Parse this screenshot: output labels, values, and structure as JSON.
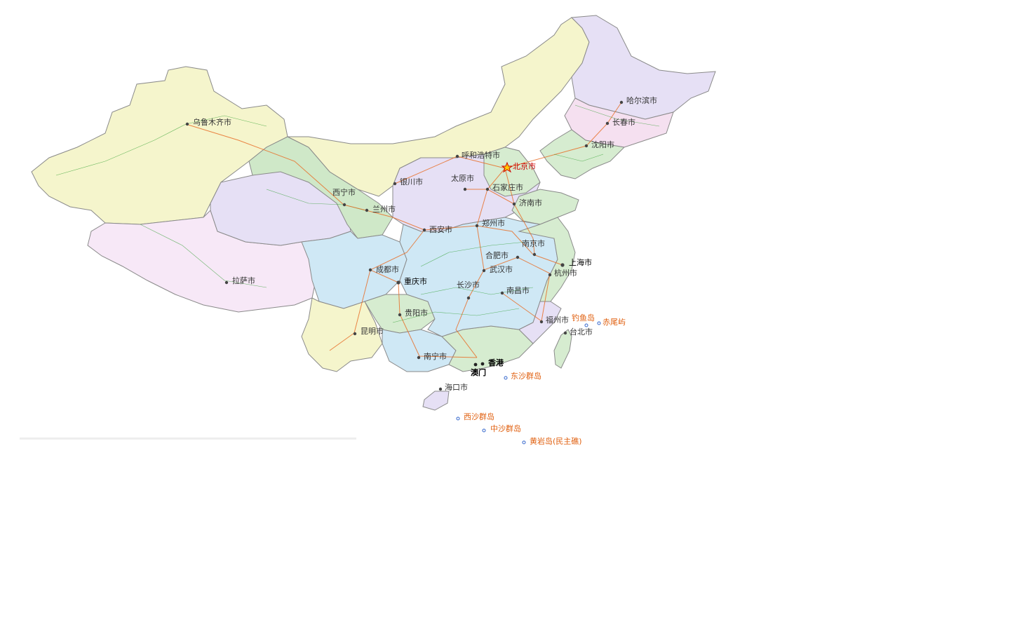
{
  "map": {
    "cities": [
      {
        "id": "urumqi",
        "name": "乌鲁木齐市",
        "type": "normal"
      },
      {
        "id": "harbin",
        "name": "哈尔滨市",
        "type": "normal"
      },
      {
        "id": "changchun",
        "name": "长春市",
        "type": "normal"
      },
      {
        "id": "shenyang",
        "name": "沈阳市",
        "type": "normal"
      },
      {
        "id": "hohhot",
        "name": "呼和浩特市",
        "type": "normal"
      },
      {
        "id": "beijing",
        "name": "北京市",
        "type": "capital"
      },
      {
        "id": "yinchuan",
        "name": "银川市",
        "type": "normal"
      },
      {
        "id": "taiyuan",
        "name": "太原市",
        "type": "normal"
      },
      {
        "id": "shijiazhuang",
        "name": "石家庄市",
        "type": "normal"
      },
      {
        "id": "xining",
        "name": "西宁市",
        "type": "normal"
      },
      {
        "id": "lanzhou",
        "name": "兰州市",
        "type": "normal"
      },
      {
        "id": "jinan",
        "name": "济南市",
        "type": "normal"
      },
      {
        "id": "xian",
        "name": "西安市",
        "type": "normal"
      },
      {
        "id": "zhengzhou",
        "name": "郑州市",
        "type": "normal"
      },
      {
        "id": "nanjing",
        "name": "南京市",
        "type": "normal"
      },
      {
        "id": "hefei",
        "name": "合肥市",
        "type": "normal"
      },
      {
        "id": "shanghai",
        "name": "上海市",
        "type": "major"
      },
      {
        "id": "chengdu",
        "name": "成都市",
        "type": "normal"
      },
      {
        "id": "wuhan",
        "name": "武汉市",
        "type": "normal"
      },
      {
        "id": "hangzhou",
        "name": "杭州市",
        "type": "normal"
      },
      {
        "id": "lhasa",
        "name": "拉萨市",
        "type": "normal"
      },
      {
        "id": "chongqing",
        "name": "重庆市",
        "type": "major"
      },
      {
        "id": "changsha",
        "name": "长沙市",
        "type": "normal"
      },
      {
        "id": "nanchang",
        "name": "南昌市",
        "type": "normal"
      },
      {
        "id": "guiyang",
        "name": "贵阳市",
        "type": "normal"
      },
      {
        "id": "fuzhou",
        "name": "福州市",
        "type": "normal"
      },
      {
        "id": "kunming",
        "name": "昆明市",
        "type": "normal"
      },
      {
        "id": "taipei",
        "name": "台北市",
        "type": "normal"
      },
      {
        "id": "nanning",
        "name": "南宁市",
        "type": "normal"
      },
      {
        "id": "hongkong",
        "name": "香港",
        "type": "sar"
      },
      {
        "id": "macau",
        "name": "澳门",
        "type": "sar"
      },
      {
        "id": "haikou",
        "name": "海口市",
        "type": "normal"
      }
    ],
    "islands": [
      {
        "id": "diaoyu",
        "name": "钓鱼岛"
      },
      {
        "id": "chiwei",
        "name": "赤尾屿"
      },
      {
        "id": "dongsha",
        "name": "东沙群岛"
      },
      {
        "id": "xisha",
        "name": "西沙群岛"
      },
      {
        "id": "zhongsha",
        "name": "中沙群岛"
      },
      {
        "id": "huangyan",
        "name": "黄岩岛(民主礁)"
      }
    ],
    "colors": {
      "xinjiang": "#f5f5cc",
      "tibet": "#f7e8f7",
      "qinghai": "#e6e0f5",
      "gansu": "#cfe8c8",
      "inner_mongolia": "#f5f5cc",
      "heilongjiang": "#e6e0f5",
      "jilin": "#f5e0f0",
      "liaoning": "#d6ecd0",
      "sichuan": "#cfe8f5",
      "yunnan": "#f5f5cc",
      "guangxi": "#d6ecd0",
      "guangdong": "#e6e0f5",
      "central": "#cfe8f5",
      "east": "#d6ecd0",
      "capital": "#cc0000",
      "rail": "#e8702a",
      "road": "#2e9e2e",
      "island_label": "#e06010"
    }
  }
}
